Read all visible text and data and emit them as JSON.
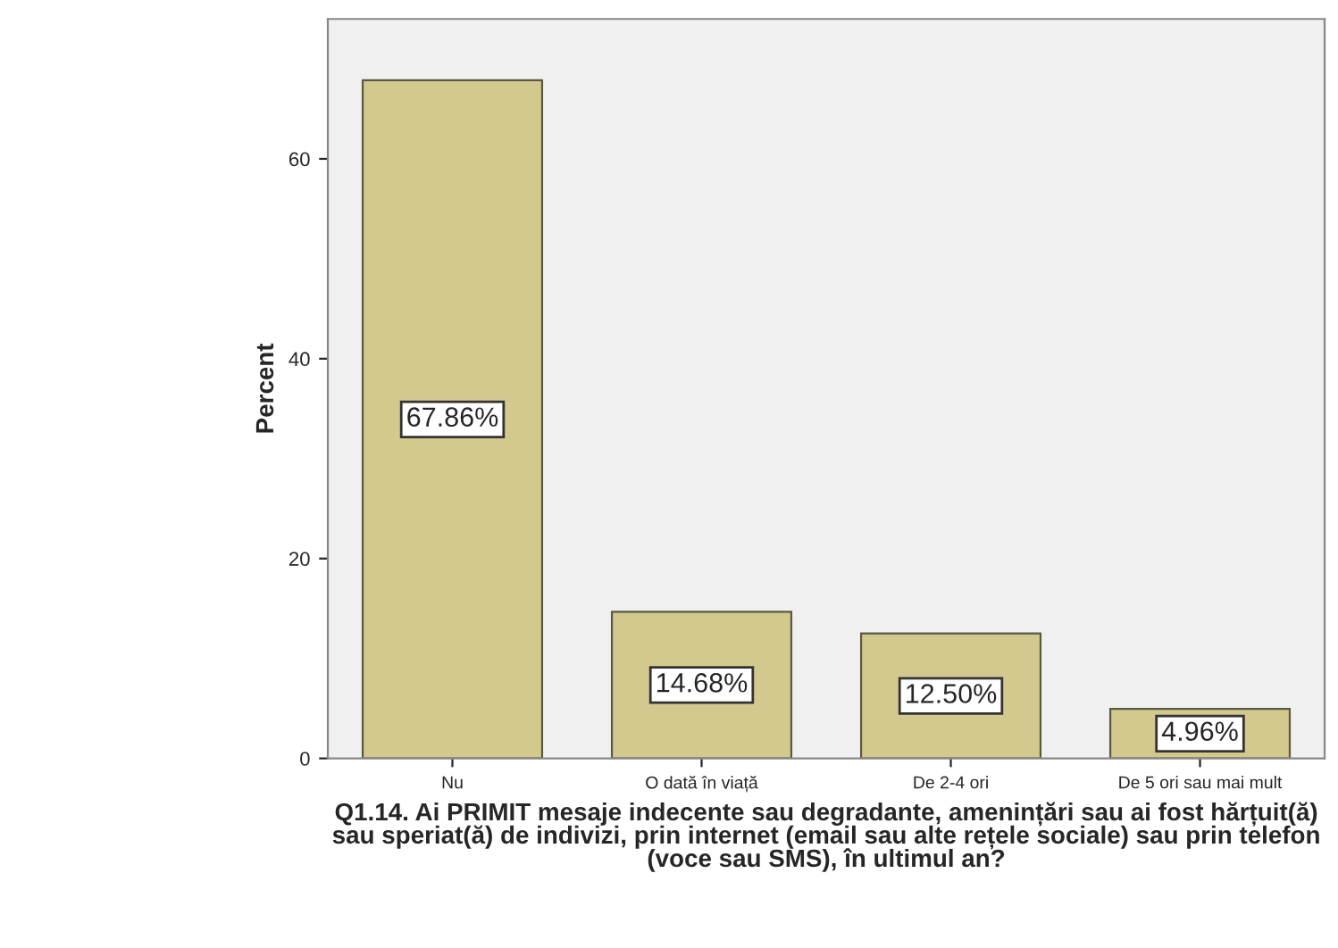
{
  "chart_data": {
    "type": "bar",
    "xlabel": "Q1.14. Ai PRIMIT mesaje indecente sau degradante, amenințări sau ai fost hărțuit(ă) sau speriat(ă) de indivizi, prin internet (email sau alte rețele sociale) sau prin telefon (voce sau SMS), în ultimul an?",
    "ylabel": "Percent",
    "categories": [
      "Nu",
      "O dată în viață",
      "De 2-4 ori",
      "De 5 ori sau mai mult"
    ],
    "values": [
      67.86,
      14.68,
      12.5,
      4.96
    ],
    "value_labels": [
      "67.86%",
      "14.68%",
      "12.50%",
      "4.96%"
    ],
    "color": "#d3c98f",
    "ylim": [
      0,
      74
    ],
    "yticks": [
      0,
      20,
      40,
      60
    ],
    "grid": false,
    "legend": false
  }
}
